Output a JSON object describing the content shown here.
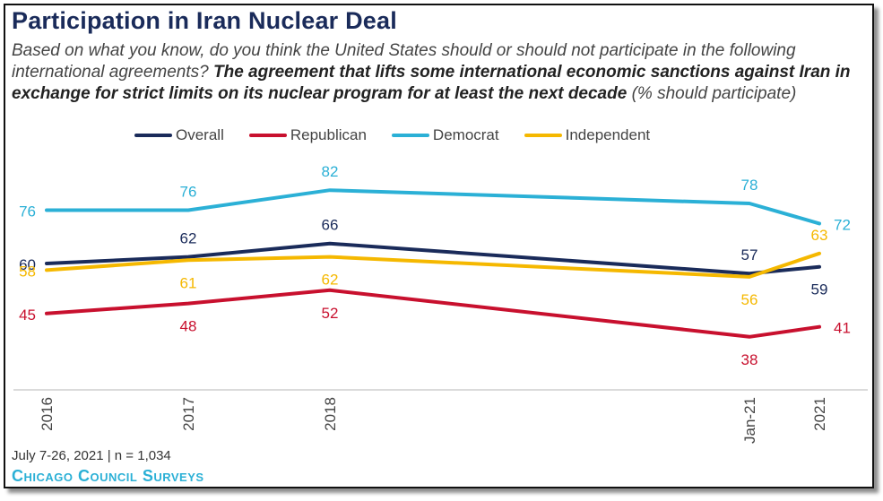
{
  "title": "Participation in Iran Nuclear Deal",
  "subtitle": {
    "question": "Based on what you know, do you think the United States should or should not participate in the following international agreements?",
    "emphasis": "The agreement that lifts some international economic sanctions against Iran in exchange for strict limits on its nuclear program for at least the next decade",
    "unit": "(% should participate)"
  },
  "footer": {
    "note": "July 7-26, 2021 | n = 1,034",
    "source": "Chicago Council Surveys"
  },
  "chart_data": {
    "type": "line",
    "x": [
      "2016",
      "2017",
      "2018",
      "Jan-21",
      "2021"
    ],
    "series": [
      {
        "name": "Overall",
        "color": "#1a2b5a",
        "values": [
          60,
          62,
          66,
          57,
          59
        ]
      },
      {
        "name": "Republican",
        "color": "#c8102e",
        "values": [
          45,
          48,
          52,
          38,
          41
        ]
      },
      {
        "name": "Democrat",
        "color": "#2bb0d6",
        "values": [
          76,
          76,
          82,
          78,
          72
        ]
      },
      {
        "name": "Independent",
        "color": "#f5b800",
        "values": [
          58,
          61,
          62,
          56,
          63
        ]
      }
    ],
    "legend_position": "top",
    "grid": false
  }
}
